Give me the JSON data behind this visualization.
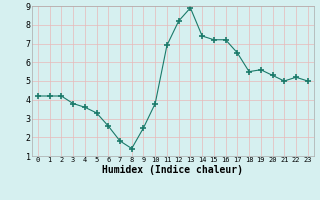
{
  "x": [
    0,
    1,
    2,
    3,
    4,
    5,
    6,
    7,
    8,
    9,
    10,
    11,
    12,
    13,
    14,
    15,
    16,
    17,
    18,
    19,
    20,
    21,
    22,
    23
  ],
  "y": [
    4.2,
    4.2,
    4.2,
    3.8,
    3.6,
    3.3,
    2.6,
    1.8,
    1.4,
    2.5,
    3.8,
    6.9,
    8.2,
    8.9,
    7.4,
    7.2,
    7.2,
    6.5,
    5.5,
    5.6,
    5.3,
    5.0,
    5.2,
    5.0
  ],
  "line_color": "#1a7a6a",
  "marker": "+",
  "marker_size": 4,
  "bg_color": "#d6f0f0",
  "grid_color": "#e8b8b8",
  "xlabel": "Humidex (Indice chaleur)",
  "xlim": [
    -0.5,
    23.5
  ],
  "ylim": [
    1,
    9
  ],
  "yticks": [
    1,
    2,
    3,
    4,
    5,
    6,
    7,
    8,
    9
  ],
  "xticks": [
    0,
    1,
    2,
    3,
    4,
    5,
    6,
    7,
    8,
    9,
    10,
    11,
    12,
    13,
    14,
    15,
    16,
    17,
    18,
    19,
    20,
    21,
    22,
    23
  ],
  "xlabel_fontsize": 7,
  "tick_fontsize": 6
}
